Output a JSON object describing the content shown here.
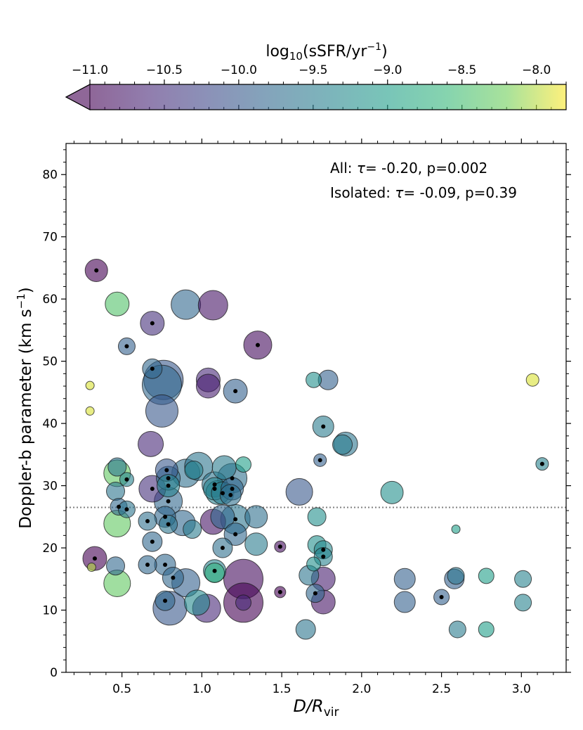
{
  "chart_data": {
    "type": "scatter",
    "xlabel": "D/R",
    "xlabel_sub": "vir",
    "ylabel": "Doppler-b parameter (km s",
    "ylabel_sup": "−1",
    "ylabel_close": ")",
    "xlim": [
      0.15,
      3.28
    ],
    "ylim": [
      0,
      85
    ],
    "xticks": [
      0.5,
      1.0,
      1.5,
      2.0,
      2.5,
      3.0
    ],
    "xtick_labels": [
      "0.5",
      "1.0",
      "1.5",
      "2.0",
      "2.5",
      "3.0"
    ],
    "yticks": [
      0,
      10,
      20,
      30,
      40,
      50,
      60,
      70,
      80
    ],
    "ytick_labels": [
      "0",
      "10",
      "20",
      "30",
      "40",
      "50",
      "60",
      "70",
      "80"
    ],
    "reference_line": {
      "y": 26.5,
      "style": "dotted",
      "color": "#808080"
    },
    "annotations": [
      {
        "prefix": "All: ",
        "symbol": "τ",
        "text": "= -0.20, p=0.002"
      },
      {
        "prefix": "Isolated: ",
        "symbol": "τ",
        "text": "= -0.09, p=0.39"
      }
    ],
    "colorbar": {
      "label_prefix": "log",
      "label_sub": "10",
      "label_main": "(sSFR/yr",
      "label_sup": "−1",
      "label_close": ")",
      "range": [
        -11.0,
        -7.8
      ],
      "ticks": [
        -11.0,
        -10.5,
        -10.0,
        -9.5,
        -9.0,
        -8.5,
        -8.0
      ],
      "tick_labels": [
        "−11.0",
        "−10.5",
        "−10.0",
        "−9.5",
        "−9.0",
        "−8.5",
        "−8.0"
      ],
      "colormap": "viridis",
      "extend": "min"
    },
    "marker_note": "marker size scales with a third quantity; black dot marks isolated systems",
    "points": [
      {
        "x": 0.34,
        "y": 64.6,
        "c": -11.0,
        "s": 16,
        "dot": true
      },
      {
        "x": 0.47,
        "y": 59.2,
        "c": -8.4,
        "s": 17,
        "dot": false
      },
      {
        "x": 0.3,
        "y": 46.1,
        "c": -7.9,
        "s": 6,
        "dot": false
      },
      {
        "x": 0.3,
        "y": 42.0,
        "c": -7.9,
        "s": 6,
        "dot": false
      },
      {
        "x": 0.53,
        "y": 52.4,
        "c": -9.9,
        "s": 12,
        "dot": true
      },
      {
        "x": 0.33,
        "y": 18.3,
        "c": -11.0,
        "s": 17,
        "dot": true
      },
      {
        "x": 0.31,
        "y": 16.9,
        "c": -8.0,
        "s": 6,
        "dot": false
      },
      {
        "x": 0.47,
        "y": 14.3,
        "c": -8.3,
        "s": 19,
        "dot": false
      },
      {
        "x": 0.46,
        "y": 17.1,
        "c": -9.8,
        "s": 13,
        "dot": false
      },
      {
        "x": 0.47,
        "y": 23.9,
        "c": -8.3,
        "s": 19,
        "dot": false
      },
      {
        "x": 0.46,
        "y": 29.1,
        "c": -9.6,
        "s": 13,
        "dot": false
      },
      {
        "x": 0.47,
        "y": 32.0,
        "c": -8.3,
        "s": 19,
        "dot": false
      },
      {
        "x": 0.47,
        "y": 33.0,
        "c": -9.6,
        "s": 13,
        "dot": false
      },
      {
        "x": 0.53,
        "y": 31.0,
        "c": -9.4,
        "s": 10,
        "dot": true
      },
      {
        "x": 0.48,
        "y": 26.6,
        "c": -9.8,
        "s": 12,
        "dot": true
      },
      {
        "x": 0.53,
        "y": 26.2,
        "c": -9.6,
        "s": 12,
        "dot": true
      },
      {
        "x": 0.69,
        "y": 56.1,
        "c": -10.5,
        "s": 17,
        "dot": true
      },
      {
        "x": 0.69,
        "y": 48.8,
        "c": -9.8,
        "s": 14,
        "dot": true
      },
      {
        "x": 0.76,
        "y": 47.0,
        "c": -10.0,
        "s": 28,
        "dot": false
      },
      {
        "x": 0.75,
        "y": 46.2,
        "c": -9.8,
        "s": 28,
        "dot": false
      },
      {
        "x": 0.75,
        "y": 42.0,
        "c": -10.0,
        "s": 23,
        "dot": false
      },
      {
        "x": 0.68,
        "y": 36.7,
        "c": -10.6,
        "s": 18,
        "dot": false
      },
      {
        "x": 0.69,
        "y": 29.5,
        "c": -10.5,
        "s": 19,
        "dot": true
      },
      {
        "x": 0.66,
        "y": 24.3,
        "c": -9.7,
        "s": 13,
        "dot": true
      },
      {
        "x": 0.69,
        "y": 21.0,
        "c": -9.8,
        "s": 14,
        "dot": true
      },
      {
        "x": 0.66,
        "y": 17.3,
        "c": -9.8,
        "s": 13,
        "dot": true
      },
      {
        "x": 0.78,
        "y": 32.5,
        "c": -10.0,
        "s": 16,
        "dot": true
      },
      {
        "x": 0.79,
        "y": 31.2,
        "c": -9.7,
        "s": 17,
        "dot": true
      },
      {
        "x": 0.79,
        "y": 30.0,
        "c": -9.4,
        "s": 16,
        "dot": true
      },
      {
        "x": 0.79,
        "y": 27.5,
        "c": -9.8,
        "s": 20,
        "dot": true
      },
      {
        "x": 0.77,
        "y": 25.0,
        "c": -9.8,
        "s": 15,
        "dot": true
      },
      {
        "x": 0.79,
        "y": 23.8,
        "c": -9.6,
        "s": 13,
        "dot": true
      },
      {
        "x": 0.77,
        "y": 17.3,
        "c": -9.8,
        "s": 15,
        "dot": true
      },
      {
        "x": 0.82,
        "y": 15.2,
        "c": -9.8,
        "s": 15,
        "dot": true
      },
      {
        "x": 0.77,
        "y": 11.5,
        "c": -9.8,
        "s": 14,
        "dot": true
      },
      {
        "x": 0.8,
        "y": 10.3,
        "c": -10.0,
        "s": 24,
        "dot": false
      },
      {
        "x": 0.9,
        "y": 59.1,
        "c": -9.8,
        "s": 21,
        "dot": false
      },
      {
        "x": 0.9,
        "y": 14.4,
        "c": -9.9,
        "s": 20,
        "dot": false
      },
      {
        "x": 0.88,
        "y": 24.0,
        "c": -9.8,
        "s": 18,
        "dot": false
      },
      {
        "x": 0.94,
        "y": 23.0,
        "c": -9.5,
        "s": 13,
        "dot": false
      },
      {
        "x": 0.9,
        "y": 32.0,
        "c": -9.7,
        "s": 20,
        "dot": false
      },
      {
        "x": 0.95,
        "y": 32.5,
        "c": -9.4,
        "s": 13,
        "dot": false
      },
      {
        "x": 0.98,
        "y": 33.1,
        "c": -9.6,
        "s": 20,
        "dot": false
      },
      {
        "x": 0.97,
        "y": 11.2,
        "c": -9.3,
        "s": 18,
        "dot": false
      },
      {
        "x": 1.03,
        "y": 10.3,
        "c": -10.6,
        "s": 20,
        "dot": false
      },
      {
        "x": 1.07,
        "y": 59.0,
        "c": -10.8,
        "s": 21,
        "dot": false
      },
      {
        "x": 1.04,
        "y": 47.0,
        "c": -10.6,
        "s": 17,
        "dot": false
      },
      {
        "x": 1.04,
        "y": 46.0,
        "c": -10.7,
        "s": 17,
        "dot": false
      },
      {
        "x": 1.21,
        "y": 45.2,
        "c": -9.9,
        "s": 17,
        "dot": true
      },
      {
        "x": 1.35,
        "y": 52.6,
        "c": -10.9,
        "s": 20,
        "dot": true
      },
      {
        "x": 1.07,
        "y": 24.2,
        "c": -10.8,
        "s": 18,
        "dot": false
      },
      {
        "x": 1.08,
        "y": 30.2,
        "c": -9.6,
        "s": 18,
        "dot": true
      },
      {
        "x": 1.08,
        "y": 29.5,
        "c": -9.4,
        "s": 16,
        "dot": true
      },
      {
        "x": 1.1,
        "y": 28.9,
        "c": -9.4,
        "s": 17,
        "dot": false
      },
      {
        "x": 1.13,
        "y": 28.8,
        "c": -9.5,
        "s": 16,
        "dot": true
      },
      {
        "x": 1.14,
        "y": 32.9,
        "c": -9.5,
        "s": 17,
        "dot": false
      },
      {
        "x": 1.19,
        "y": 31.2,
        "c": -9.7,
        "s": 21,
        "dot": true
      },
      {
        "x": 1.19,
        "y": 29.5,
        "c": -9.8,
        "s": 16,
        "dot": true
      },
      {
        "x": 1.18,
        "y": 28.5,
        "c": -9.7,
        "s": 15,
        "dot": true
      },
      {
        "x": 1.13,
        "y": 25.0,
        "c": -9.8,
        "s": 17,
        "dot": false
      },
      {
        "x": 1.21,
        "y": 24.6,
        "c": -9.6,
        "s": 21,
        "dot": true
      },
      {
        "x": 1.21,
        "y": 22.2,
        "c": -9.8,
        "s": 16,
        "dot": true
      },
      {
        "x": 1.13,
        "y": 20.0,
        "c": -9.7,
        "s": 14,
        "dot": true
      },
      {
        "x": 1.08,
        "y": 16.3,
        "c": -9.4,
        "s": 16,
        "dot": true
      },
      {
        "x": 1.08,
        "y": 16.0,
        "c": -8.7,
        "s": 14,
        "dot": false
      },
      {
        "x": 1.26,
        "y": 33.4,
        "c": -9.0,
        "s": 11,
        "dot": false
      },
      {
        "x": 1.26,
        "y": 15.0,
        "c": -10.9,
        "s": 28,
        "dot": false
      },
      {
        "x": 1.26,
        "y": 11.2,
        "c": -11.0,
        "s": 28,
        "dot": false
      },
      {
        "x": 1.26,
        "y": 11.2,
        "c": -10.6,
        "s": 11,
        "dot": false
      },
      {
        "x": 1.34,
        "y": 25.0,
        "c": -9.7,
        "s": 16,
        "dot": false
      },
      {
        "x": 1.34,
        "y": 20.6,
        "c": -9.5,
        "s": 16,
        "dot": false
      },
      {
        "x": 1.49,
        "y": 20.2,
        "c": -10.9,
        "s": 8,
        "dot": true
      },
      {
        "x": 1.49,
        "y": 12.9,
        "c": -11.0,
        "s": 8,
        "dot": true
      },
      {
        "x": 1.61,
        "y": 29.0,
        "c": -10.0,
        "s": 19,
        "dot": false
      },
      {
        "x": 1.7,
        "y": 47.0,
        "c": -9.2,
        "s": 11,
        "dot": false
      },
      {
        "x": 1.79,
        "y": 47.0,
        "c": -9.9,
        "s": 14,
        "dot": false
      },
      {
        "x": 1.76,
        "y": 39.5,
        "c": -9.5,
        "s": 15,
        "dot": true
      },
      {
        "x": 1.74,
        "y": 34.1,
        "c": -9.9,
        "s": 9,
        "dot": true
      },
      {
        "x": 1.9,
        "y": 36.7,
        "c": -9.6,
        "s": 17,
        "dot": false
      },
      {
        "x": 1.88,
        "y": 36.6,
        "c": -9.5,
        "s": 14,
        "dot": false
      },
      {
        "x": 1.72,
        "y": 25.0,
        "c": -9.2,
        "s": 13,
        "dot": false
      },
      {
        "x": 1.72,
        "y": 20.5,
        "c": -9.2,
        "s": 13,
        "dot": false
      },
      {
        "x": 1.76,
        "y": 19.7,
        "c": -9.3,
        "s": 13,
        "dot": true
      },
      {
        "x": 1.76,
        "y": 18.6,
        "c": -9.4,
        "s": 13,
        "dot": true
      },
      {
        "x": 1.7,
        "y": 17.4,
        "c": -9.2,
        "s": 10,
        "dot": false
      },
      {
        "x": 1.67,
        "y": 15.6,
        "c": -9.6,
        "s": 14,
        "dot": false
      },
      {
        "x": 1.71,
        "y": 12.7,
        "c": -9.8,
        "s": 13,
        "dot": true
      },
      {
        "x": 1.76,
        "y": 15.0,
        "c": -10.7,
        "s": 17,
        "dot": false
      },
      {
        "x": 1.76,
        "y": 11.3,
        "c": -10.8,
        "s": 17,
        "dot": false
      },
      {
        "x": 1.65,
        "y": 6.9,
        "c": -9.6,
        "s": 14,
        "dot": false
      },
      {
        "x": 2.19,
        "y": 28.9,
        "c": -9.2,
        "s": 16,
        "dot": false
      },
      {
        "x": 2.27,
        "y": 15.0,
        "c": -9.9,
        "s": 15,
        "dot": false
      },
      {
        "x": 2.27,
        "y": 11.3,
        "c": -9.9,
        "s": 15,
        "dot": false
      },
      {
        "x": 2.5,
        "y": 12.1,
        "c": -9.9,
        "s": 11,
        "dot": true
      },
      {
        "x": 2.58,
        "y": 15.0,
        "c": -9.9,
        "s": 14,
        "dot": false
      },
      {
        "x": 2.59,
        "y": 15.5,
        "c": -9.6,
        "s": 12,
        "dot": false
      },
      {
        "x": 2.59,
        "y": 23.0,
        "c": -9.0,
        "s": 6,
        "dot": false
      },
      {
        "x": 2.6,
        "y": 6.9,
        "c": -9.5,
        "s": 12,
        "dot": false
      },
      {
        "x": 2.78,
        "y": 15.5,
        "c": -9.0,
        "s": 11,
        "dot": false
      },
      {
        "x": 2.78,
        "y": 6.9,
        "c": -9.0,
        "s": 11,
        "dot": false
      },
      {
        "x": 3.01,
        "y": 15.0,
        "c": -9.4,
        "s": 12,
        "dot": false
      },
      {
        "x": 3.01,
        "y": 11.2,
        "c": -9.4,
        "s": 12,
        "dot": false
      },
      {
        "x": 3.07,
        "y": 47.0,
        "c": -7.9,
        "s": 9,
        "dot": false
      },
      {
        "x": 3.13,
        "y": 33.5,
        "c": -9.4,
        "s": 9,
        "dot": true
      }
    ]
  }
}
